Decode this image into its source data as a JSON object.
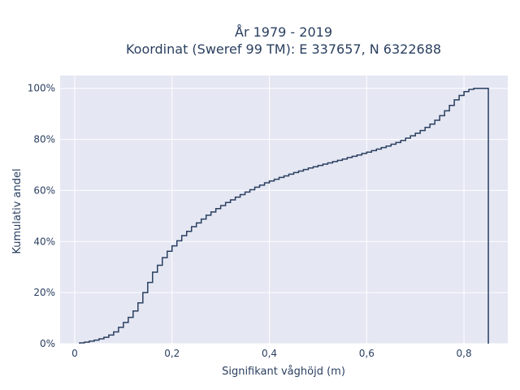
{
  "chart_data": {
    "type": "step",
    "title_lines": [
      "År 1979 - 2019",
      "Koordinat (Sweref 99 TM): E 337657, N 6322688"
    ],
    "xlabel": "Signifikant våghöjd (m)",
    "ylabel": "Kumulativ andel",
    "xlim": [
      -0.03,
      0.89
    ],
    "ylim": [
      0,
      1.05
    ],
    "x_ticks": [
      0,
      0.2,
      0.4,
      0.6,
      0.8
    ],
    "x_tick_labels": [
      "0",
      "0,2",
      "0,4",
      "0,6",
      "0,8"
    ],
    "y_ticks": [
      0,
      0.2,
      0.4,
      0.6,
      0.8,
      1.0
    ],
    "y_tick_labels": [
      "0%",
      "20%",
      "40%",
      "60%",
      "80%",
      "100%"
    ],
    "grid": true,
    "colors": {
      "background": "#e5e7f3",
      "grid": "#ffffff",
      "line": "#2a3f5f"
    },
    "series": [
      {
        "x": [
          0.01,
          0.02,
          0.03,
          0.04,
          0.05,
          0.06,
          0.07,
          0.08,
          0.09,
          0.1,
          0.11,
          0.12,
          0.13,
          0.14,
          0.15,
          0.16,
          0.17,
          0.18,
          0.19,
          0.2,
          0.21,
          0.22,
          0.23,
          0.24,
          0.25,
          0.26,
          0.27,
          0.28,
          0.29,
          0.3,
          0.31,
          0.32,
          0.33,
          0.34,
          0.35,
          0.36,
          0.37,
          0.38,
          0.39,
          0.4,
          0.41,
          0.42,
          0.43,
          0.44,
          0.45,
          0.46,
          0.47,
          0.48,
          0.49,
          0.5,
          0.51,
          0.52,
          0.53,
          0.54,
          0.55,
          0.56,
          0.57,
          0.58,
          0.59,
          0.6,
          0.61,
          0.62,
          0.63,
          0.64,
          0.65,
          0.66,
          0.67,
          0.68,
          0.69,
          0.7,
          0.71,
          0.72,
          0.73,
          0.74,
          0.75,
          0.76,
          0.77,
          0.78,
          0.79,
          0.8,
          0.81,
          0.82,
          0.83,
          0.84,
          0.85
        ],
        "y": [
          0.003,
          0.006,
          0.01,
          0.014,
          0.019,
          0.025,
          0.034,
          0.046,
          0.064,
          0.083,
          0.103,
          0.128,
          0.16,
          0.2,
          0.24,
          0.28,
          0.307,
          0.337,
          0.362,
          0.383,
          0.403,
          0.423,
          0.44,
          0.458,
          0.473,
          0.488,
          0.503,
          0.516,
          0.529,
          0.541,
          0.553,
          0.563,
          0.574,
          0.584,
          0.594,
          0.603,
          0.613,
          0.621,
          0.63,
          0.637,
          0.644,
          0.651,
          0.657,
          0.664,
          0.67,
          0.676,
          0.682,
          0.688,
          0.693,
          0.698,
          0.703,
          0.708,
          0.713,
          0.718,
          0.723,
          0.729,
          0.734,
          0.739,
          0.745,
          0.75,
          0.756,
          0.762,
          0.768,
          0.774,
          0.781,
          0.788,
          0.796,
          0.805,
          0.814,
          0.824,
          0.835,
          0.847,
          0.86,
          0.875,
          0.893,
          0.912,
          0.933,
          0.955,
          0.972,
          0.987,
          0.996,
          1.0,
          1.0,
          1.0,
          1.0
        ]
      }
    ]
  }
}
